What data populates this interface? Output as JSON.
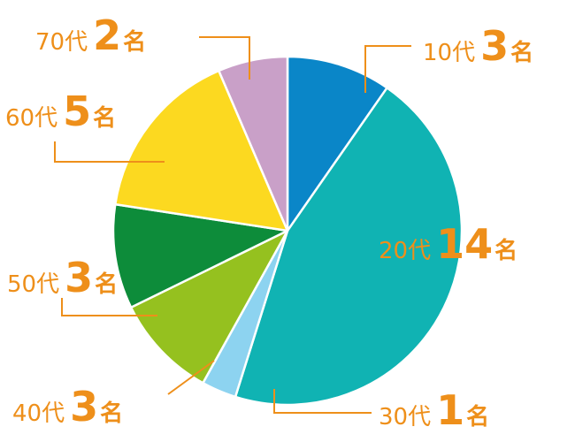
{
  "chart_data": {
    "type": "pie",
    "categories": [
      "10代",
      "20代",
      "30代",
      "40代",
      "50代",
      "60代",
      "70代"
    ],
    "values": [
      3,
      14,
      1,
      3,
      3,
      5,
      2
    ],
    "unit": "名",
    "colors": [
      "#0a86c8",
      "#10b3b3",
      "#8dd3f0",
      "#95c11f",
      "#0d8c3a",
      "#fcd920",
      "#c9a0c8"
    ],
    "start_angle": 0,
    "direction": "clockwise"
  }
}
